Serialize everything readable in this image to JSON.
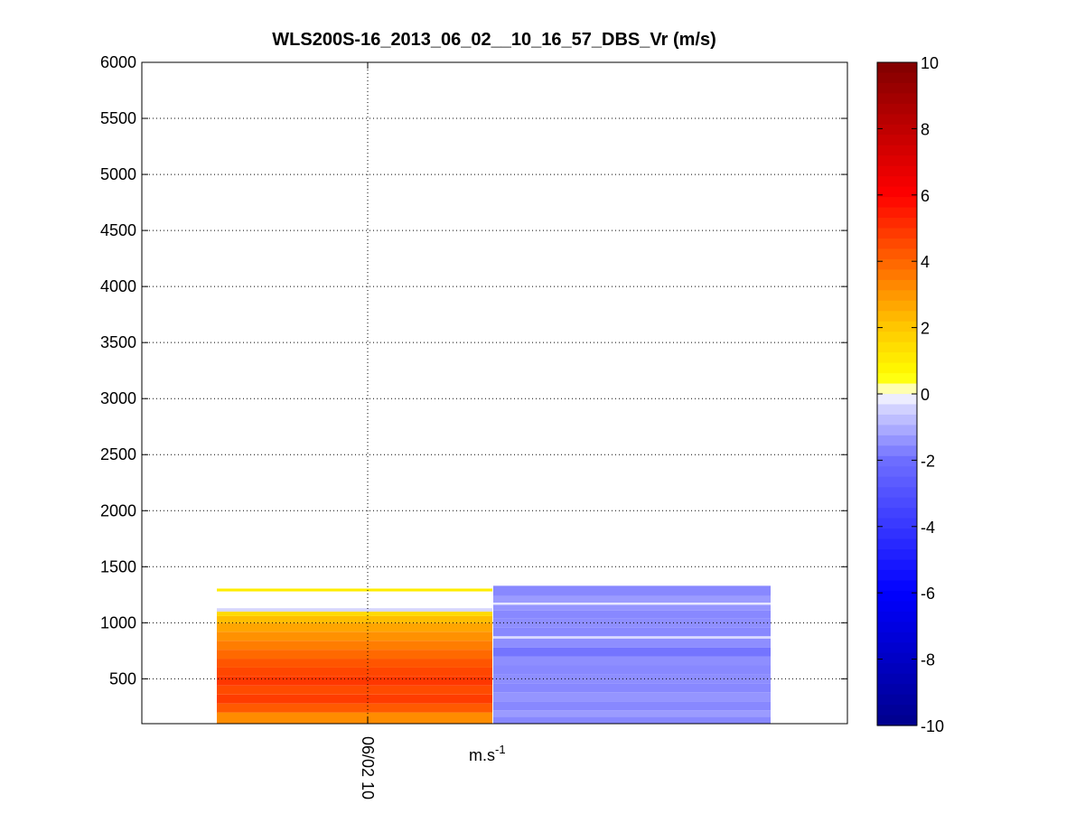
{
  "chart_data": {
    "type": "heatmap",
    "title": "WLS200S-16_2013_06_02__10_16_57_DBS_Vr (m/s)",
    "xlabel": "",
    "ylabel": "",
    "xtick_labels": [
      "06/02 10"
    ],
    "ylim": [
      100,
      6000
    ],
    "yticks": [
      500,
      1000,
      1500,
      2000,
      2500,
      3000,
      3500,
      4000,
      4500,
      5000,
      5500,
      6000
    ],
    "grid": true,
    "grid_style": "dotted",
    "colorbar": {
      "clim": [
        -10,
        10
      ],
      "ticks": [
        -10,
        -8,
        -6,
        -4,
        -2,
        0,
        2,
        4,
        6,
        8,
        10
      ],
      "unit_label": "m.s",
      "unit_exponent": "-1",
      "colormap": "blue-white-yellow-red"
    },
    "columns": [
      {
        "name": "column-1",
        "segments": [
          {
            "from": 100,
            "to": 200,
            "value": 3.2
          },
          {
            "from": 200,
            "to": 280,
            "value": 4.2
          },
          {
            "from": 280,
            "to": 360,
            "value": 4.8
          },
          {
            "from": 360,
            "to": 440,
            "value": 4.5
          },
          {
            "from": 440,
            "to": 520,
            "value": 4.9
          },
          {
            "from": 520,
            "to": 600,
            "value": 4.6
          },
          {
            "from": 600,
            "to": 680,
            "value": 4.3
          },
          {
            "from": 680,
            "to": 760,
            "value": 3.9
          },
          {
            "from": 760,
            "to": 840,
            "value": 3.5
          },
          {
            "from": 840,
            "to": 920,
            "value": 3.1
          },
          {
            "from": 920,
            "to": 1000,
            "value": 2.7
          },
          {
            "from": 1000,
            "to": 1060,
            "value": 2.2
          },
          {
            "from": 1060,
            "to": 1100,
            "value": 1.5
          },
          {
            "from": 1100,
            "to": 1130,
            "value": -0.4
          },
          {
            "from": 1280,
            "to": 1305,
            "value": 1.0
          }
        ]
      },
      {
        "name": "column-2",
        "segments": [
          {
            "from": 100,
            "to": 160,
            "value": -1.6
          },
          {
            "from": 160,
            "to": 220,
            "value": -1.3
          },
          {
            "from": 220,
            "to": 300,
            "value": -1.6
          },
          {
            "from": 300,
            "to": 380,
            "value": -1.4
          },
          {
            "from": 380,
            "to": 460,
            "value": -1.6
          },
          {
            "from": 460,
            "to": 540,
            "value": -1.5
          },
          {
            "from": 540,
            "to": 620,
            "value": -1.6
          },
          {
            "from": 620,
            "to": 700,
            "value": -1.5
          },
          {
            "from": 700,
            "to": 780,
            "value": -1.9
          },
          {
            "from": 780,
            "to": 860,
            "value": -1.5
          },
          {
            "from": 860,
            "to": 880,
            "value": -0.3
          },
          {
            "from": 880,
            "to": 960,
            "value": -1.6
          },
          {
            "from": 960,
            "to": 1040,
            "value": -1.5
          },
          {
            "from": 1040,
            "to": 1110,
            "value": -1.6
          },
          {
            "from": 1110,
            "to": 1160,
            "value": -1.4
          },
          {
            "from": 1160,
            "to": 1180,
            "value": -0.2
          },
          {
            "from": 1180,
            "to": 1240,
            "value": -1.3
          },
          {
            "from": 1240,
            "to": 1330,
            "value": -1.6
          }
        ]
      }
    ]
  }
}
